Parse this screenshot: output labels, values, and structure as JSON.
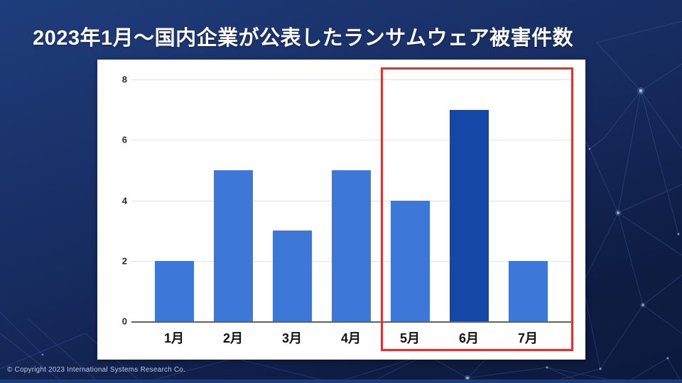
{
  "slide": {
    "title": "2023年1月～国内企業が公表したランサムウェア被害件数",
    "copyright": "© Copyright 2023 International Systems Research Co."
  },
  "colors": {
    "background_top": "#1f3d7c",
    "background_bottom": "#0c1a3e",
    "bar_default": "#3d78d8",
    "bar_highlight": "#1547a8",
    "highlight_box_border": "#dd3333",
    "gridline": "#e2e2e2",
    "axis_line": "#616161",
    "panel_background": "#ffffff",
    "title_text": "#ffffff",
    "footer_strip": "#1d3c7c",
    "constellation_line": "#5b82d6"
  },
  "chart_data": {
    "type": "bar",
    "title": "",
    "xlabel": "",
    "ylabel": "",
    "categories": [
      "1月",
      "2月",
      "3月",
      "4月",
      "5月",
      "6月",
      "7月"
    ],
    "values": [
      2,
      5,
      3,
      5,
      4,
      7,
      2
    ],
    "highlighted_category": "6月",
    "highlight_range": [
      "5月",
      "6月",
      "7月"
    ],
    "yticks": [
      0,
      2,
      4,
      6,
      8
    ],
    "ylim": [
      0,
      8
    ],
    "grid": true,
    "legend": "none"
  }
}
